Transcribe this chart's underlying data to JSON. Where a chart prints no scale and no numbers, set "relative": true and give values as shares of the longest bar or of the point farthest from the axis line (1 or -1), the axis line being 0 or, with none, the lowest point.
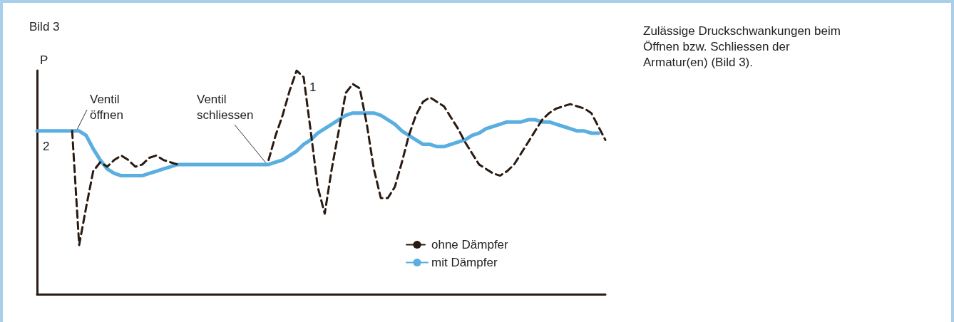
{
  "chart_data": {
    "type": "line",
    "title": "Bild 3",
    "ylabel": "P",
    "relative": true,
    "marker": "none",
    "grid": false,
    "legend": "bottom",
    "categories": [
      null,
      null,
      null,
      null,
      null,
      null,
      null,
      null,
      null,
      null,
      null,
      null,
      null,
      null,
      null,
      null,
      null,
      null,
      null,
      null,
      null,
      null,
      null,
      null,
      null,
      null,
      null,
      null,
      null,
      null,
      null,
      null,
      null,
      null,
      null,
      null,
      null,
      null,
      null,
      null,
      null,
      null,
      null,
      null,
      null,
      null,
      null,
      null,
      null,
      null,
      null,
      null,
      null,
      null,
      null,
      null,
      null,
      null,
      null,
      null,
      null,
      null,
      null,
      null,
      null,
      null,
      null,
      null,
      null,
      null,
      null,
      null,
      null,
      null,
      null,
      null,
      null,
      null,
      null,
      null,
      null,
      null
    ],
    "series": [
      {
        "name": "ohne Dämpfer",
        "color": "#2a1a12",
        "line_style": "dashed",
        "values": [
          null,
          null,
          null,
          null,
          null,
          0.73,
          0.22,
          0.39,
          0.55,
          0.59,
          0.57,
          0.6,
          0.62,
          0.6,
          0.57,
          0.58,
          0.61,
          0.62,
          0.6,
          0.59,
          0.58,
          null,
          null,
          null,
          null,
          null,
          null,
          null,
          null,
          null,
          null,
          null,
          null,
          0.6,
          0.71,
          0.8,
          0.91,
          1.0,
          0.97,
          0.73,
          0.48,
          0.36,
          0.56,
          0.73,
          0.9,
          0.94,
          0.92,
          0.76,
          0.56,
          0.43,
          0.43,
          0.48,
          0.59,
          0.71,
          0.8,
          0.86,
          0.88,
          0.86,
          0.84,
          0.79,
          0.74,
          0.68,
          0.63,
          0.58,
          0.56,
          0.54,
          0.53,
          0.55,
          0.58,
          0.63,
          0.68,
          0.73,
          0.78,
          0.81,
          0.83,
          0.84,
          0.85,
          0.84,
          0.83,
          0.81,
          0.75,
          0.69
        ]
      },
      {
        "name": "mit Dämpfer",
        "color": "#5aaee0",
        "line_style": "solid",
        "values": [
          0.73,
          0.73,
          0.73,
          0.73,
          0.73,
          0.73,
          0.73,
          0.71,
          0.65,
          0.6,
          0.56,
          0.54,
          0.53,
          0.53,
          0.53,
          0.53,
          0.54,
          0.55,
          0.56,
          0.57,
          0.58,
          0.58,
          0.58,
          0.58,
          0.58,
          0.58,
          0.58,
          0.58,
          0.58,
          0.58,
          0.58,
          0.58,
          0.58,
          0.58,
          0.59,
          0.6,
          0.62,
          0.64,
          0.67,
          0.69,
          0.72,
          0.74,
          0.76,
          0.78,
          0.8,
          0.81,
          0.81,
          0.81,
          0.81,
          0.8,
          0.78,
          0.76,
          0.73,
          0.71,
          0.69,
          0.67,
          0.67,
          0.66,
          0.66,
          0.67,
          0.68,
          0.69,
          0.71,
          0.72,
          0.74,
          0.75,
          0.76,
          0.77,
          0.77,
          0.77,
          0.78,
          0.78,
          0.77,
          0.77,
          0.76,
          0.75,
          0.74,
          0.73,
          0.73,
          0.72,
          0.72,
          null
        ]
      }
    ],
    "annotations": [
      "Ventil\nöffnen",
      "Ventil\nschliessen",
      "1",
      "2",
      "Zulässige Druckschwankungen beim Öffnen bzw. Schliessen der Armatur(en) (Bild 3)."
    ]
  }
}
